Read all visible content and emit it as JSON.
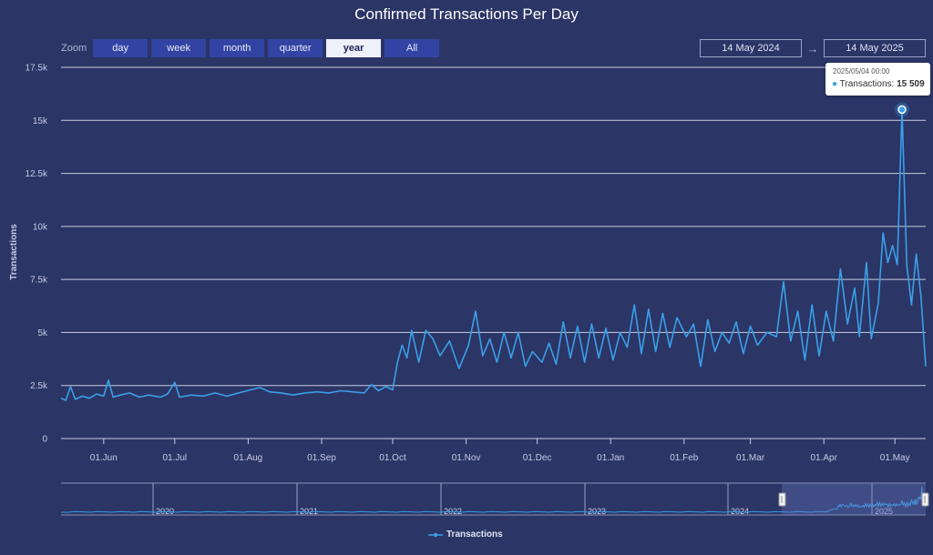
{
  "title": "Confirmed Transactions Per Day",
  "zoom": {
    "label": "Zoom",
    "buttons": [
      "day",
      "week",
      "month",
      "quarter",
      "year",
      "All"
    ],
    "active": "year"
  },
  "range": {
    "from": "14 May 2024",
    "to": "14 May 2025",
    "arrow": "→"
  },
  "tooltip": {
    "date": "2025/05/04 00:00",
    "series": "Transactions",
    "value": "15 509"
  },
  "navigator": {
    "years": [
      "2020",
      "2021",
      "2022",
      "2023",
      "2024",
      "2025"
    ]
  },
  "legend": {
    "label": "Transactions"
  },
  "colors": {
    "line": "#3aa0e8",
    "background": "#2b3566",
    "grid": "#c9cde0",
    "button": "#3343a3"
  },
  "chart_data": {
    "type": "line",
    "ylabel": "Transactions",
    "xlabel": "",
    "ylim": [
      0,
      17500
    ],
    "yticks": [
      0,
      2500,
      5000,
      7500,
      10000,
      12500,
      15000,
      17500
    ],
    "ytick_labels": [
      "0",
      "2.5k",
      "5k",
      "7.5k",
      "10k",
      "12.5k",
      "15k",
      "17.5k"
    ],
    "xlim": [
      "2024-05-14",
      "2025-05-14"
    ],
    "xticks": [
      "2024-06-01",
      "2024-07-01",
      "2024-08-01",
      "2024-09-01",
      "2024-10-01",
      "2024-11-01",
      "2024-12-01",
      "2025-01-01",
      "2025-02-01",
      "2025-03-01",
      "2025-04-01",
      "2025-05-01"
    ],
    "xtick_labels": [
      "01.Jun",
      "01.Jul",
      "01.Aug",
      "01.Sep",
      "01.Oct",
      "01.Nov",
      "01.Dec",
      "01.Jan",
      "01.Feb",
      "01.Mar",
      "01.Apr",
      "01.May"
    ],
    "grid": true,
    "series": [
      {
        "name": "Transactions",
        "points": [
          [
            "2024-05-14",
            1900
          ],
          [
            "2024-05-16",
            1800
          ],
          [
            "2024-05-18",
            2450
          ],
          [
            "2024-05-20",
            1850
          ],
          [
            "2024-05-23",
            2000
          ],
          [
            "2024-05-26",
            1900
          ],
          [
            "2024-05-29",
            2100
          ],
          [
            "2024-06-01",
            2000
          ],
          [
            "2024-06-03",
            2750
          ],
          [
            "2024-06-05",
            1950
          ],
          [
            "2024-06-08",
            2050
          ],
          [
            "2024-06-12",
            2150
          ],
          [
            "2024-06-16",
            1950
          ],
          [
            "2024-06-20",
            2050
          ],
          [
            "2024-06-25",
            1950
          ],
          [
            "2024-06-28",
            2100
          ],
          [
            "2024-07-01",
            2650
          ],
          [
            "2024-07-03",
            1950
          ],
          [
            "2024-07-08",
            2050
          ],
          [
            "2024-07-13",
            2000
          ],
          [
            "2024-07-18",
            2150
          ],
          [
            "2024-07-23",
            2000
          ],
          [
            "2024-07-28",
            2150
          ],
          [
            "2024-08-02",
            2300
          ],
          [
            "2024-08-06",
            2400
          ],
          [
            "2024-08-10",
            2200
          ],
          [
            "2024-08-15",
            2150
          ],
          [
            "2024-08-20",
            2050
          ],
          [
            "2024-08-25",
            2150
          ],
          [
            "2024-08-30",
            2200
          ],
          [
            "2024-09-04",
            2150
          ],
          [
            "2024-09-09",
            2250
          ],
          [
            "2024-09-14",
            2200
          ],
          [
            "2024-09-19",
            2150
          ],
          [
            "2024-09-22",
            2550
          ],
          [
            "2024-09-25",
            2250
          ],
          [
            "2024-09-28",
            2450
          ],
          [
            "2024-10-01",
            2300
          ],
          [
            "2024-10-03",
            3600
          ],
          [
            "2024-10-05",
            4400
          ],
          [
            "2024-10-07",
            3800
          ],
          [
            "2024-10-09",
            5100
          ],
          [
            "2024-10-12",
            3600
          ],
          [
            "2024-10-15",
            5100
          ],
          [
            "2024-10-18",
            4700
          ],
          [
            "2024-10-21",
            3900
          ],
          [
            "2024-10-25",
            4600
          ],
          [
            "2024-10-29",
            3300
          ],
          [
            "2024-11-02",
            4400
          ],
          [
            "2024-11-05",
            6000
          ],
          [
            "2024-11-08",
            3900
          ],
          [
            "2024-11-11",
            4700
          ],
          [
            "2024-11-14",
            3600
          ],
          [
            "2024-11-17",
            5000
          ],
          [
            "2024-11-20",
            3800
          ],
          [
            "2024-11-23",
            5000
          ],
          [
            "2024-11-26",
            3400
          ],
          [
            "2024-11-29",
            4100
          ],
          [
            "2024-12-03",
            3600
          ],
          [
            "2024-12-06",
            4500
          ],
          [
            "2024-12-09",
            3500
          ],
          [
            "2024-12-12",
            5500
          ],
          [
            "2024-12-15",
            3800
          ],
          [
            "2024-12-18",
            5300
          ],
          [
            "2024-12-21",
            3600
          ],
          [
            "2024-12-24",
            5400
          ],
          [
            "2024-12-27",
            3800
          ],
          [
            "2024-12-30",
            5200
          ],
          [
            "2025-01-02",
            3700
          ],
          [
            "2025-01-05",
            5000
          ],
          [
            "2025-01-08",
            4300
          ],
          [
            "2025-01-11",
            6300
          ],
          [
            "2025-01-14",
            4000
          ],
          [
            "2025-01-17",
            6100
          ],
          [
            "2025-01-20",
            4100
          ],
          [
            "2025-01-23",
            5900
          ],
          [
            "2025-01-26",
            4300
          ],
          [
            "2025-01-29",
            5700
          ],
          [
            "2025-02-02",
            4800
          ],
          [
            "2025-02-05",
            5400
          ],
          [
            "2025-02-08",
            3400
          ],
          [
            "2025-02-11",
            5600
          ],
          [
            "2025-02-14",
            4100
          ],
          [
            "2025-02-17",
            5000
          ],
          [
            "2025-02-20",
            4500
          ],
          [
            "2025-02-23",
            5500
          ],
          [
            "2025-02-26",
            4000
          ],
          [
            "2025-03-01",
            5300
          ],
          [
            "2025-03-04",
            4400
          ],
          [
            "2025-03-08",
            5000
          ],
          [
            "2025-03-12",
            4800
          ],
          [
            "2025-03-15",
            7400
          ],
          [
            "2025-03-18",
            4600
          ],
          [
            "2025-03-21",
            6000
          ],
          [
            "2025-03-24",
            3700
          ],
          [
            "2025-03-27",
            6300
          ],
          [
            "2025-03-30",
            3900
          ],
          [
            "2025-04-02",
            6000
          ],
          [
            "2025-04-05",
            4600
          ],
          [
            "2025-04-08",
            8000
          ],
          [
            "2025-04-11",
            5400
          ],
          [
            "2025-04-14",
            7100
          ],
          [
            "2025-04-16",
            4800
          ],
          [
            "2025-04-19",
            8300
          ],
          [
            "2025-04-21",
            4700
          ],
          [
            "2025-04-24",
            6400
          ],
          [
            "2025-04-26",
            9700
          ],
          [
            "2025-04-28",
            8300
          ],
          [
            "2025-04-30",
            9100
          ],
          [
            "2025-05-02",
            8200
          ],
          [
            "2025-05-04",
            15509
          ],
          [
            "2025-05-06",
            8200
          ],
          [
            "2025-05-08",
            6300
          ],
          [
            "2025-05-10",
            8700
          ],
          [
            "2025-05-12",
            6700
          ],
          [
            "2025-05-14",
            3400
          ]
        ]
      }
    ]
  }
}
